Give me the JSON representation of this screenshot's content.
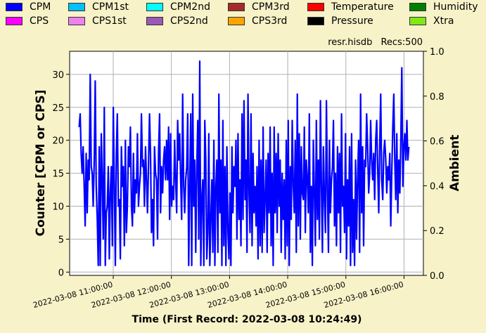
{
  "legend": [
    {
      "label": "CPM",
      "color": "#0000ff"
    },
    {
      "label": "CPM1st",
      "color": "#00bfff"
    },
    {
      "label": "CPM2nd",
      "color": "#00ffff"
    },
    {
      "label": "CPM3rd",
      "color": "#a52a2a"
    },
    {
      "label": "Temperature",
      "color": "#ff0000"
    },
    {
      "label": "Humidity",
      "color": "#008000"
    },
    {
      "label": "CPS",
      "color": "#ff00ff"
    },
    {
      "label": "CPS1st",
      "color": "#ee82ee"
    },
    {
      "label": "CPS2nd",
      "color": "#9b59b6"
    },
    {
      "label": "CPS3rd",
      "color": "#ffa500"
    },
    {
      "label": "Pressure",
      "color": "#000000"
    },
    {
      "label": "Xtra",
      "color": "#7fe817"
    }
  ],
  "info": {
    "file": "resr.hisdb",
    "records": "Recs:500"
  },
  "chart_data": {
    "type": "line",
    "title": "",
    "xlabel": "Time (First Record: 2022-03-08 10:24:49)",
    "ylabel": "Counter  [CPM or CPS]",
    "y2label": "Ambient",
    "ylim": [
      -0.5,
      33.5
    ],
    "y2lim": [
      0.0,
      1.0
    ],
    "yticks": [
      0,
      5,
      10,
      15,
      20,
      25,
      30
    ],
    "y2ticks": [
      0.0,
      0.2,
      0.4,
      0.6,
      0.8,
      1.0
    ],
    "xlim": [
      "2022-03-08 10:15:00",
      "2022-03-08 16:20:00"
    ],
    "xticks": [
      "2022-03-08 11:00:00",
      "2022-03-08 12:00:00",
      "2022-03-08 13:00:00",
      "2022-03-08 14:00:00",
      "2022-03-08 15:00:00",
      "2022-03-08 16:00:00"
    ],
    "grid": true,
    "series": [
      {
        "name": "CPM",
        "color": "#0000ff",
        "x_start": "2022-03-08 10:24:49",
        "x_end": "2022-03-08 16:05:00",
        "values": [
          22,
          24,
          18,
          15,
          19,
          13,
          7,
          18,
          9,
          17,
          14,
          30,
          16,
          15,
          10,
          17,
          29,
          13,
          8,
          1,
          19,
          1,
          21,
          14,
          5,
          25,
          1,
          9,
          10,
          16,
          2,
          12,
          16,
          4,
          25,
          13,
          1,
          18,
          24,
          10,
          11,
          2,
          19,
          13,
          16,
          4,
          20,
          6,
          10,
          19,
          16,
          22,
          10,
          7,
          18,
          9,
          14,
          12,
          21,
          10,
          13,
          15,
          24,
          16,
          17,
          10,
          19,
          14,
          9,
          16,
          24,
          18,
          6,
          11,
          4,
          19,
          15,
          14,
          5,
          18,
          24,
          9,
          16,
          12,
          17,
          19,
          14,
          20,
          14,
          22,
          8,
          21,
          10,
          13,
          11,
          20,
          14,
          9,
          23,
          17,
          21,
          14,
          8,
          27,
          13,
          9,
          14,
          16,
          24,
          1,
          12,
          24,
          1,
          27,
          10,
          17,
          3,
          16,
          23,
          5,
          32,
          1,
          11,
          14,
          1,
          23,
          17,
          2,
          6,
          21,
          1,
          8,
          14,
          3,
          20,
          1,
          13,
          17,
          3,
          27,
          9,
          17,
          1,
          23,
          4,
          16,
          1,
          19,
          6,
          2,
          12,
          1,
          19,
          9,
          16,
          13,
          20,
          5,
          21,
          8,
          14,
          4,
          24,
          8,
          26,
          11,
          17,
          3,
          27,
          12,
          6,
          24,
          4,
          18,
          9,
          13,
          7,
          16,
          2,
          20,
          4,
          17,
          3,
          22,
          6,
          11,
          17,
          3,
          18,
          9,
          22,
          4,
          15,
          1,
          22,
          9,
          18,
          6,
          21,
          10,
          17,
          3,
          15,
          8,
          14,
          2,
          20,
          4,
          23,
          1,
          16,
          8,
          23,
          13,
          9,
          20,
          3,
          27,
          7,
          21,
          5,
          19,
          12,
          11,
          22,
          6,
          17,
          14,
          9,
          24,
          3,
          13,
          1,
          20,
          12,
          4,
          23,
          8,
          17,
          5,
          26,
          13,
          3,
          19,
          11,
          6,
          26,
          12,
          3,
          20,
          9,
          14,
          16,
          23,
          7,
          15,
          4,
          19,
          9,
          18,
          3,
          24,
          10,
          13,
          6,
          21,
          2,
          14,
          7,
          19,
          1,
          21,
          3,
          11,
          1,
          17,
          5,
          14,
          20,
          3,
          27,
          9,
          19,
          4,
          17,
          16,
          24,
          19,
          12,
          15,
          23,
          17,
          14,
          18,
          11,
          20,
          23,
          16,
          9,
          19,
          27,
          14,
          11,
          18,
          20,
          17,
          12,
          16,
          14,
          18,
          7,
          15,
          22,
          27,
          17,
          11,
          21,
          9,
          17,
          12,
          20,
          31,
          13,
          19,
          21,
          17,
          23,
          17,
          19
        ]
      }
    ]
  }
}
